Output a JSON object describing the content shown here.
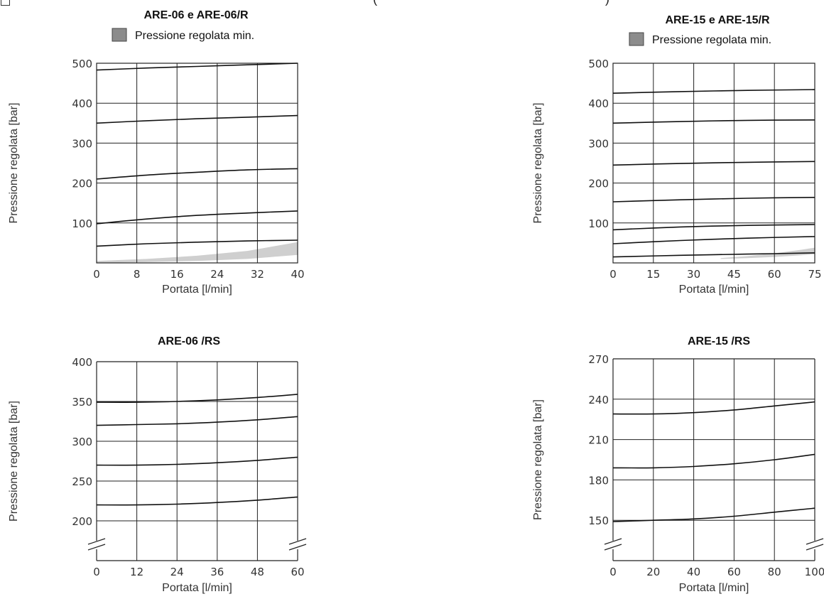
{
  "top_fragment": {
    "left": "(",
    "right": ")"
  },
  "chart_data": [
    {
      "type": "line",
      "title": "ARE-06 e ARE-06/R",
      "legend": "Pressione regolata min.",
      "xlabel": "Portata [l/min]",
      "ylabel": "Pressione regolata [bar]",
      "xlim": [
        0,
        40
      ],
      "ylim": [
        0,
        500
      ],
      "xticks": [
        0,
        8,
        16,
        24,
        32,
        40
      ],
      "yticks": [
        100,
        200,
        300,
        400,
        500
      ],
      "grid": true,
      "break": false,
      "band": {
        "x": [
          0,
          10,
          20,
          30,
          40
        ],
        "lower": [
          0,
          2,
          5,
          10,
          20
        ],
        "upper": [
          5,
          10,
          18,
          30,
          52
        ]
      },
      "series": [
        {
          "x": [
            0,
            10,
            20,
            30,
            40
          ],
          "y": [
            483,
            488,
            492,
            496,
            500
          ]
        },
        {
          "x": [
            0,
            10,
            20,
            30,
            40
          ],
          "y": [
            350,
            356,
            361,
            365,
            369
          ]
        },
        {
          "x": [
            0,
            10,
            20,
            30,
            40
          ],
          "y": [
            210,
            220,
            227,
            233,
            236
          ]
        },
        {
          "x": [
            0,
            10,
            20,
            30,
            40
          ],
          "y": [
            98,
            110,
            119,
            125,
            130
          ]
        },
        {
          "x": [
            0,
            10,
            20,
            30,
            40
          ],
          "y": [
            42,
            48,
            52,
            55,
            57
          ]
        }
      ]
    },
    {
      "type": "line",
      "title": "ARE-15 e ARE-15/R",
      "legend": "Pressione regolata min.",
      "xlabel": "Portata [l/min]",
      "ylabel": "Pressione regolata [bar]",
      "xlim": [
        0,
        75
      ],
      "ylim": [
        0,
        500
      ],
      "xticks": [
        0,
        15,
        30,
        45,
        60,
        75
      ],
      "yticks": [
        100,
        200,
        300,
        400,
        500
      ],
      "grid": true,
      "break": false,
      "band": {
        "x": [
          40,
          50,
          60,
          70,
          75
        ],
        "lower": [
          10,
          12,
          15,
          19,
          22
        ],
        "upper": [
          12,
          17,
          24,
          33,
          38
        ]
      },
      "series": [
        {
          "x": [
            0,
            25,
            50,
            75
          ],
          "y": [
            425,
            429,
            432,
            434
          ]
        },
        {
          "x": [
            0,
            25,
            50,
            75
          ],
          "y": [
            350,
            354,
            357,
            358
          ]
        },
        {
          "x": [
            0,
            25,
            50,
            75
          ],
          "y": [
            245,
            249,
            252,
            254
          ]
        },
        {
          "x": [
            0,
            25,
            50,
            75
          ],
          "y": [
            153,
            158,
            162,
            164
          ]
        },
        {
          "x": [
            0,
            25,
            50,
            75
          ],
          "y": [
            83,
            90,
            94,
            96
          ]
        },
        {
          "x": [
            0,
            25,
            50,
            75
          ],
          "y": [
            48,
            56,
            62,
            66
          ]
        },
        {
          "x": [
            0,
            25,
            50,
            75
          ],
          "y": [
            15,
            19,
            22,
            25
          ]
        }
      ]
    },
    {
      "type": "line",
      "title": "ARE-06 /RS",
      "xlabel": "Portata [l/min]",
      "ylabel": "Pressione regolata [bar]",
      "xlim": [
        0,
        60
      ],
      "ylim": [
        150,
        400
      ],
      "xticks": [
        0,
        12,
        24,
        36,
        48,
        60
      ],
      "yticks": [
        200,
        250,
        300,
        350,
        400
      ],
      "grid": true,
      "break": true,
      "series": [
        {
          "x": [
            0,
            12,
            24,
            36,
            48,
            60
          ],
          "y": [
            349,
            349,
            350,
            352,
            355,
            359
          ]
        },
        {
          "x": [
            0,
            12,
            24,
            36,
            48,
            60
          ],
          "y": [
            320,
            321,
            322,
            324,
            327,
            331
          ]
        },
        {
          "x": [
            0,
            12,
            24,
            36,
            48,
            60
          ],
          "y": [
            270,
            270,
            271,
            273,
            276,
            280
          ]
        },
        {
          "x": [
            0,
            12,
            24,
            36,
            48,
            60
          ],
          "y": [
            220,
            220,
            221,
            223,
            226,
            230
          ]
        }
      ]
    },
    {
      "type": "line",
      "title": "ARE-15 /RS",
      "xlabel": "Portata [l/min]",
      "ylabel": "Pressione regolata [bar]",
      "xlim": [
        0,
        100
      ],
      "ylim": [
        120,
        270
      ],
      "xticks": [
        0,
        20,
        40,
        60,
        80,
        100
      ],
      "yticks": [
        150,
        180,
        210,
        240,
        270
      ],
      "grid": true,
      "break": true,
      "series": [
        {
          "x": [
            0,
            20,
            40,
            60,
            80,
            100
          ],
          "y": [
            229,
            229,
            230,
            232,
            235,
            238
          ]
        },
        {
          "x": [
            0,
            20,
            40,
            60,
            80,
            100
          ],
          "y": [
            189,
            189,
            190,
            192,
            195,
            199
          ]
        },
        {
          "x": [
            0,
            20,
            40,
            60,
            80,
            100
          ],
          "y": [
            149,
            150,
            151,
            153,
            156,
            159
          ]
        }
      ]
    }
  ]
}
